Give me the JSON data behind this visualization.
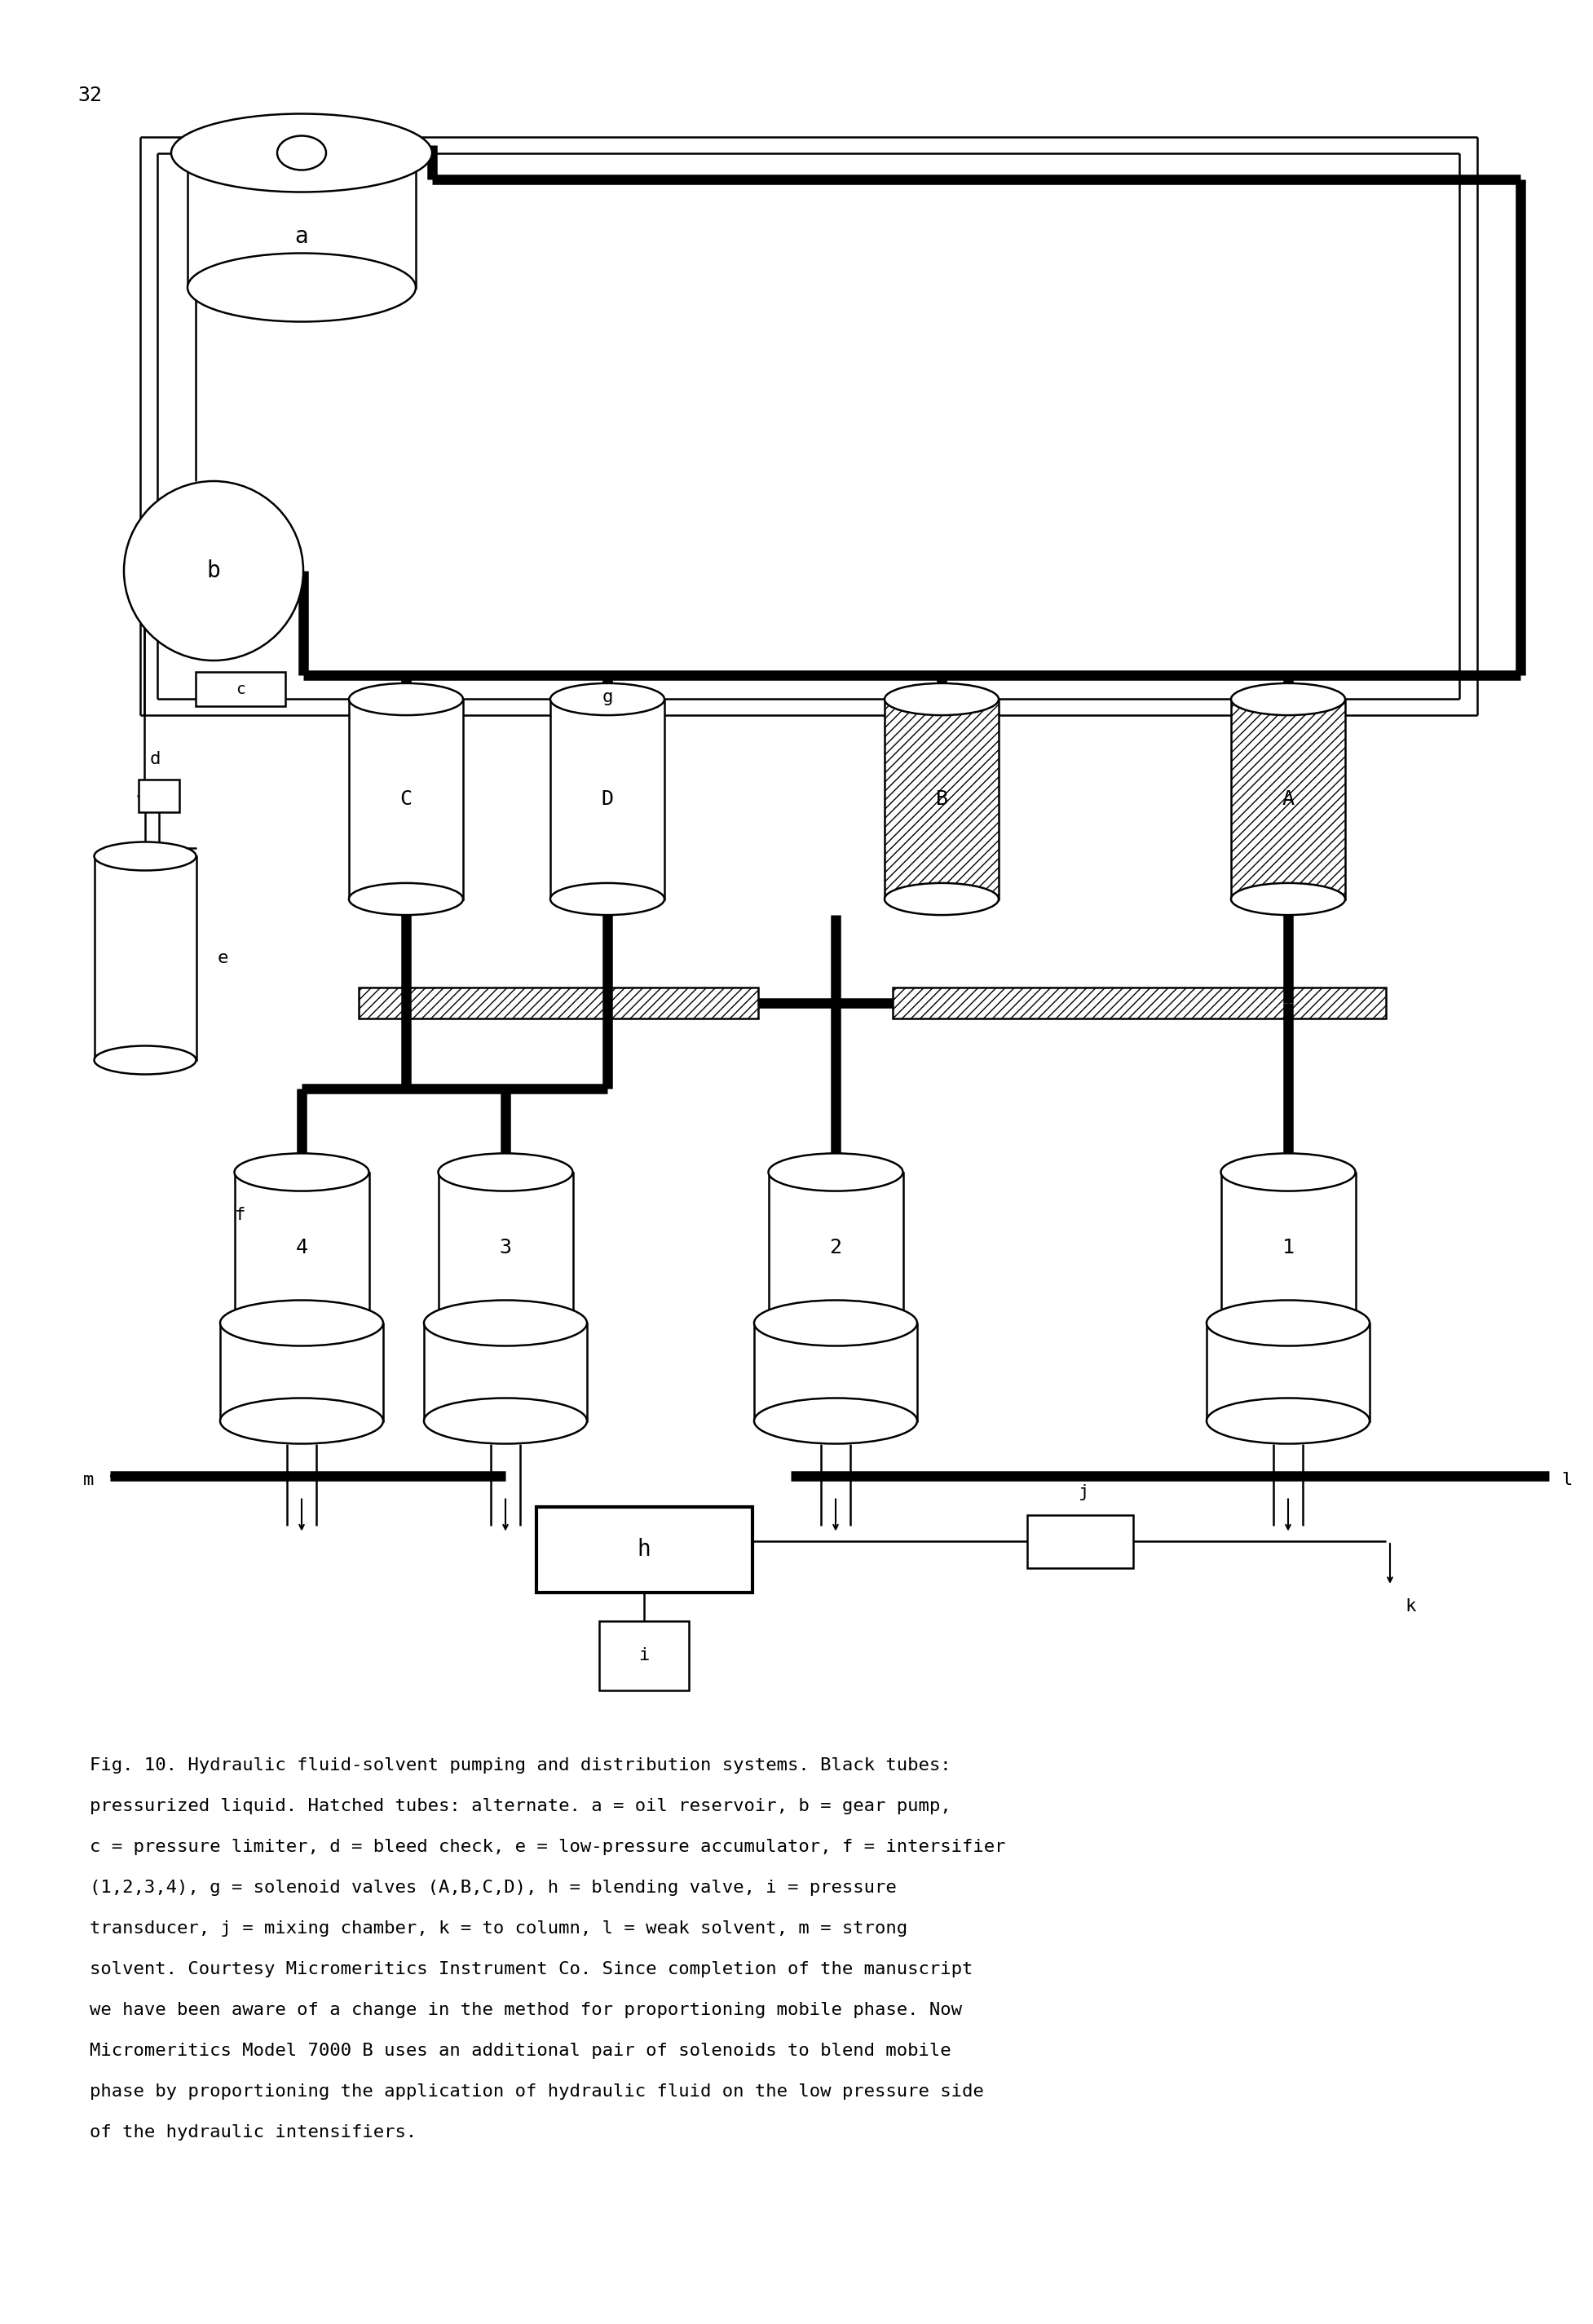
{
  "page_number": "32",
  "bg_color": "#ffffff",
  "caption_line1": "Fig. 10. Hydraulic fluid-solvent pumping and distribution systems. Black tubes:",
  "caption_line2": "pressurized liquid. Hatched tubes: alternate. a = oil reservoir, b = gear pump,",
  "caption_line3": "c = pressure limiter, d = bleed check, e = low-pressure accumulator, f = intersifier",
  "caption_line4": "(1,2,3,4), g = solenoid valves (A,B,C,D), h = blending valve, i = pressure",
  "caption_line5": "transducer, j = mixing chamber, k = to column, l = weak solvent, m = strong",
  "caption_line6": "solvent. Courtesy Micromeritics Instrument Co. Since completion of the manuscript",
  "caption_line7": "we have been aware of a change in the method for proportioning mobile phase. Now",
  "caption_line8": "Micromeritics Model 7000 B uses an additional pair of solenoids to blend mobile",
  "caption_line9": "phase by proportioning the application of hydraulic fluid on the low pressure side",
  "caption_line10": "of the hydraulic intensifiers."
}
